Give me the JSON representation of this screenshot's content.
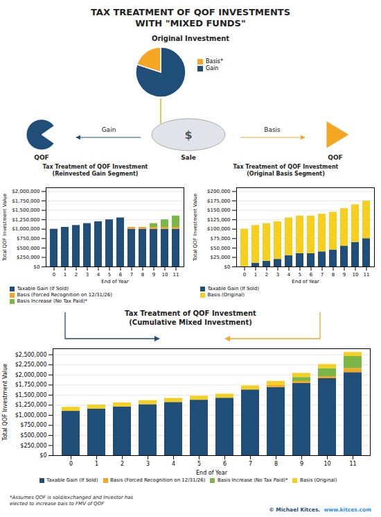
{
  "title": "TAX TREATMENT OF QOF INVESTMENTS\nWITH \"MIXED FUNDS\"",
  "chart_data": [
    {
      "type": "pie",
      "title": "Original Investment",
      "categories": [
        "Gain",
        "Basis*"
      ],
      "values": [
        80,
        20
      ],
      "colors": [
        "#1f4e79",
        "#f5a623"
      ],
      "legend": "right",
      "annotations": [
        "QOF",
        "$",
        "Sale",
        "QOF",
        "Gain",
        "Basis"
      ]
    },
    {
      "type": "bar",
      "stacked": true,
      "title": "Tax Treatment of QOF Investment\n(Reinvested Gain Segment)",
      "categories": [
        "0",
        "1",
        "2",
        "3",
        "4",
        "5",
        "6",
        "7",
        "8",
        "9",
        "10",
        "11"
      ],
      "x_label": "End of Year",
      "y_label": "Total QOF Investment Value",
      "series": [
        {
          "name": "Taxable Gain (If Sold)",
          "color": "#1f4e79",
          "values": [
            1000000,
            1050000,
            1100000,
            1150000,
            1200000,
            1250000,
            1300000,
            1000000,
            1000000,
            1000000,
            1000000,
            1000000
          ]
        },
        {
          "name": "Basis (Forced Recognition on 12/31/26)",
          "color": "#f5a623",
          "values": [
            0,
            0,
            0,
            0,
            0,
            0,
            0,
            50000,
            50000,
            50000,
            50000,
            50000
          ]
        },
        {
          "name": "Basis Increase (No Tax Paid)*",
          "color": "#7ab648",
          "values": [
            0,
            0,
            0,
            0,
            0,
            0,
            0,
            0,
            0,
            100000,
            200000,
            300000
          ]
        }
      ],
      "ylim": [
        0,
        2100000
      ],
      "yticks": [
        {
          "value": 0,
          "label": "$0"
        },
        {
          "value": 250000,
          "label": "$250,000"
        },
        {
          "value": 500000,
          "label": "$500,000"
        },
        {
          "value": 750000,
          "label": "$750,000"
        },
        {
          "value": 1000000,
          "label": "$1,000,000"
        },
        {
          "value": 1250000,
          "label": "$1,250,000"
        },
        {
          "value": 1500000,
          "label": "$1,500,000"
        },
        {
          "value": 1750000,
          "label": "$1,750,000"
        },
        {
          "value": 2000000,
          "label": "$2,000,000"
        }
      ],
      "grid": true,
      "legend": "bottom"
    },
    {
      "type": "bar",
      "stacked": true,
      "title": "Tax Treatment of QOF Investment\n(Original Basis Segment)",
      "categories": [
        "0",
        "1",
        "2",
        "3",
        "4",
        "5",
        "6",
        "7",
        "8",
        "9",
        "10",
        "11"
      ],
      "x_label": "End of Year",
      "y_label": "Total QOF Investment Value",
      "series": [
        {
          "name": "Taxable Gain (If Sold)",
          "color": "#1f4e79",
          "values": [
            0,
            10000,
            15000,
            20000,
            30000,
            35000,
            35000,
            40000,
            45000,
            55000,
            65000,
            75000
          ]
        },
        {
          "name": "Basis (Original)",
          "color": "#f5d020",
          "values": [
            100000,
            100000,
            100000,
            100000,
            100000,
            100000,
            100000,
            100000,
            100000,
            100000,
            100000,
            100000
          ]
        }
      ],
      "ylim": [
        0,
        210000
      ],
      "yticks": [
        {
          "value": 0,
          "label": "$0"
        },
        {
          "value": 25000,
          "label": "$25,000"
        },
        {
          "value": 50000,
          "label": "$50,000"
        },
        {
          "value": 75000,
          "label": "$75,000"
        },
        {
          "value": 100000,
          "label": "$100,000"
        },
        {
          "value": 125000,
          "label": "$125,000"
        },
        {
          "value": 150000,
          "label": "$150,000"
        },
        {
          "value": 175000,
          "label": "$175,000"
        },
        {
          "value": 200000,
          "label": "$200,000"
        }
      ],
      "grid": true,
      "legend": "bottom"
    },
    {
      "type": "bar",
      "stacked": true,
      "title": "Tax Treatment of QOF Investment\n(Cumulative Mixed Investment)",
      "categories": [
        "0",
        "1",
        "2",
        "3",
        "4",
        "5",
        "6",
        "7",
        "8",
        "9",
        "10",
        "11"
      ],
      "x_label": "End of Year",
      "y_label": "Total QOF Investment Value",
      "series": [
        {
          "name": "Taxable Gain (If Sold)",
          "color": "#1f4e79",
          "values": [
            1100000,
            1155000,
            1210000,
            1265000,
            1320000,
            1375000,
            1425000,
            1630000,
            1690000,
            1790000,
            1910000,
            2060000
          ]
        },
        {
          "name": "Basis (Forced Recognition on 12/31/26)",
          "color": "#f5a623",
          "values": [
            0,
            0,
            0,
            0,
            0,
            0,
            0,
            0,
            50000,
            50000,
            50000,
            100000
          ]
        },
        {
          "name": "Basis Increase (No Tax Paid)*",
          "color": "#7ab648",
          "values": [
            0,
            0,
            0,
            0,
            0,
            0,
            0,
            0,
            0,
            100000,
            200000,
            300000
          ]
        },
        {
          "name": "Basis (Original)",
          "color": "#f5d020",
          "values": [
            100000,
            100000,
            100000,
            100000,
            100000,
            100000,
            100000,
            100000,
            100000,
            100000,
            100000,
            100000
          ]
        }
      ],
      "ylim": [
        0,
        2650000
      ],
      "yticks": [
        {
          "value": 0,
          "label": "$0"
        },
        {
          "value": 250000,
          "label": "$250,000"
        },
        {
          "value": 500000,
          "label": "$500,000"
        },
        {
          "value": 750000,
          "label": "$750,000"
        },
        {
          "value": 1000000,
          "label": "$1,000,000"
        },
        {
          "value": 1250000,
          "label": "$1,250,000"
        },
        {
          "value": 1500000,
          "label": "$1,500,000"
        },
        {
          "value": 1750000,
          "label": "$1,750,000"
        },
        {
          "value": 2000000,
          "label": "$2,000,000"
        },
        {
          "value": 2250000,
          "label": "$2,250,000"
        },
        {
          "value": 2500000,
          "label": "$2,500,000"
        }
      ],
      "grid": true,
      "legend": "bottom",
      "annotations": [
        "*Assumes QOF is sold/exchanged and Investor has\nelected to increase bais to FMV of QOF",
        "© Michael Kitces.  ",
        "www.kitces.com"
      ]
    }
  ]
}
